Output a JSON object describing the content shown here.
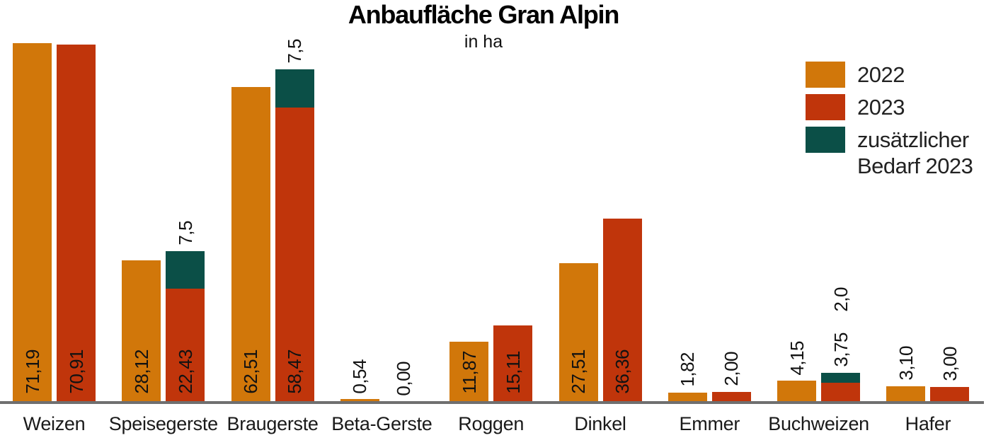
{
  "page": {
    "background_color": "#ffffff",
    "text_color": "#1a1a1a",
    "axis_line_color": "#6f6f6f"
  },
  "chart_data": {
    "type": "bar",
    "title": "Anbaufläche Gran Alpin",
    "subtitle": "in ha",
    "unit": "ha",
    "grid": false,
    "y_axis_visible": false,
    "legend_position": "top-right",
    "decimal_separator": ",",
    "categories": [
      "Weizen",
      "Speisegerste",
      "Braugerste",
      "Beta-Gerste",
      "Roggen",
      "Dinkel",
      "Emmer",
      "Buchweizen",
      "Hafer"
    ],
    "series": [
      {
        "key": "2022",
        "name": "2022",
        "color": "#d1770a",
        "stacked": false,
        "values": [
          71.19,
          28.12,
          62.51,
          0.54,
          11.87,
          27.51,
          1.82,
          4.15,
          3.1
        ],
        "labels": [
          "71,19",
          "28,12",
          "62,51",
          "0,54",
          "11,87",
          "27,51",
          "1,82",
          "4,15",
          "3,10"
        ]
      },
      {
        "key": "2023",
        "name": "2023",
        "color": "#c0350b",
        "stacked": false,
        "values": [
          70.91,
          22.43,
          58.47,
          0.0,
          15.11,
          36.36,
          2.0,
          3.75,
          3.0
        ],
        "labels": [
          "70,91",
          "22,43",
          "58,47",
          "0,00",
          "15,11",
          "36,36",
          "2,00",
          "3,75",
          "3,00"
        ]
      },
      {
        "key": "extra-2023",
        "name": "zusätzlicher Bedarf 2023",
        "legend_label": "zusätzlicher\nBedarf 2023",
        "color": "#0b4f47",
        "stacked_on": "2023",
        "values": [
          0,
          7.5,
          7.5,
          0,
          0,
          0,
          0,
          2.0,
          0
        ],
        "labels": [
          "",
          "7,5",
          "7,5",
          "",
          "",
          "",
          "",
          "2,0",
          ""
        ]
      }
    ]
  }
}
